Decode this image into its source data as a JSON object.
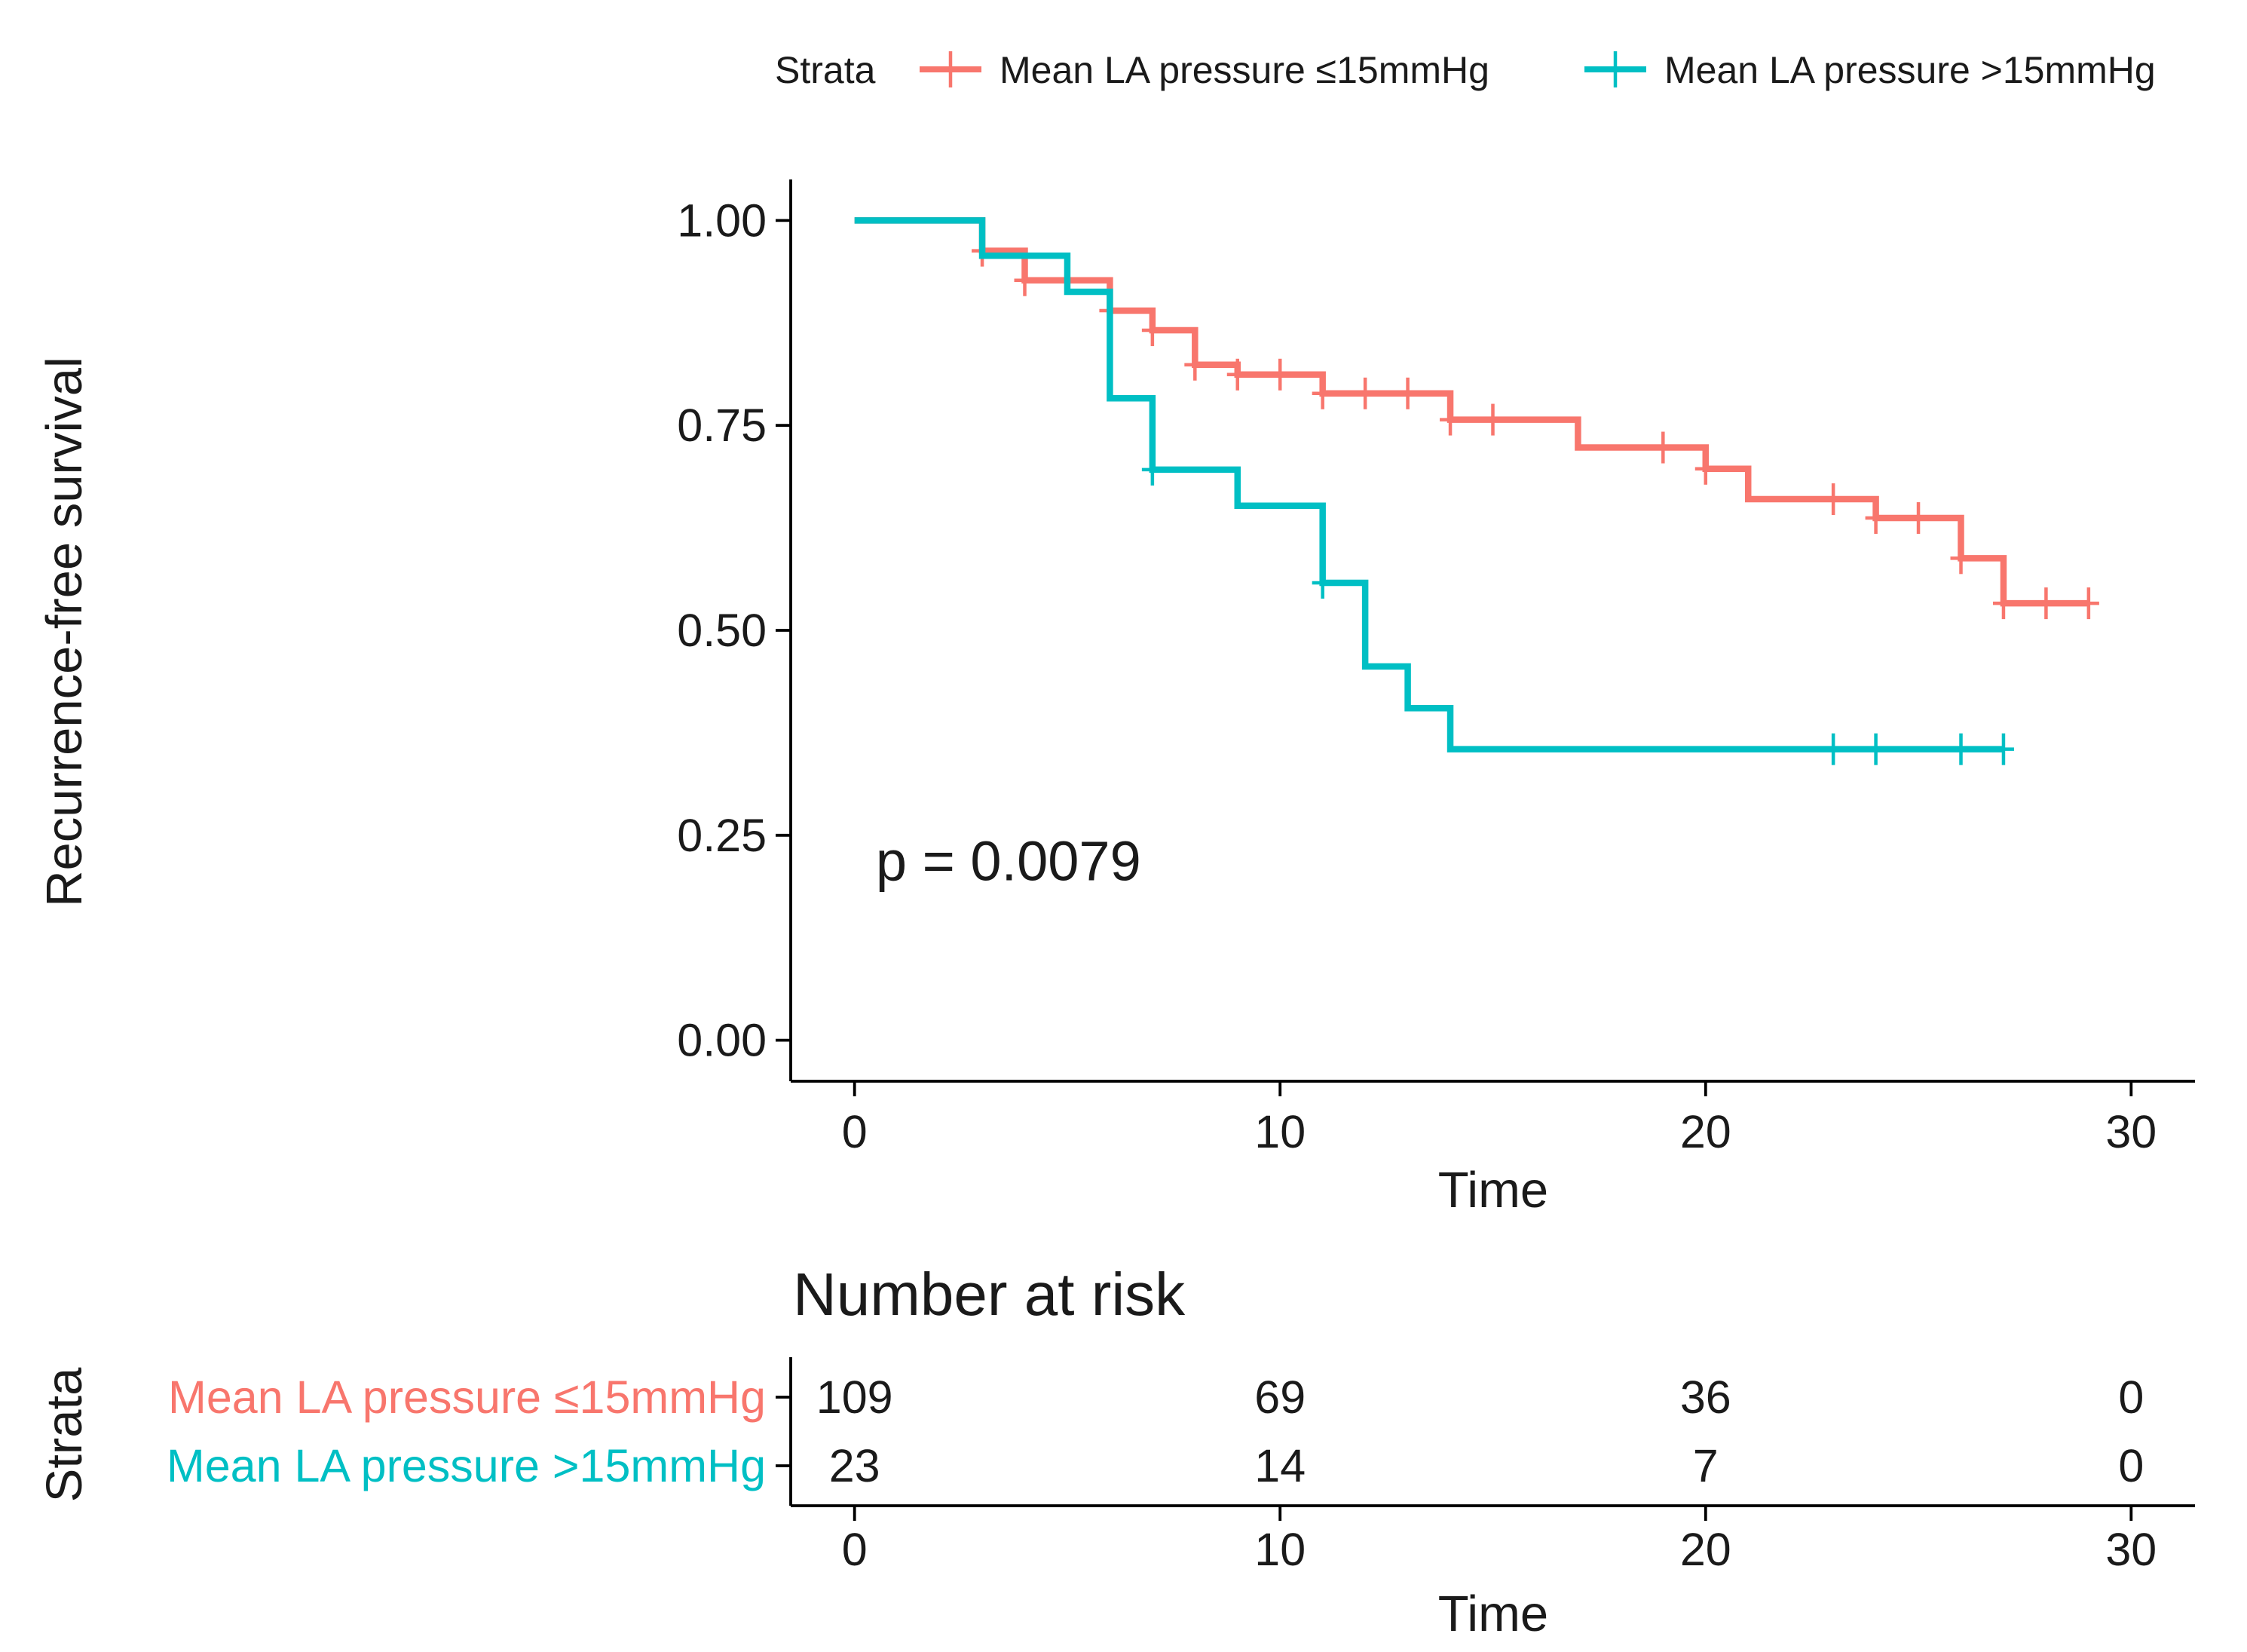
{
  "chart_data": [
    {
      "type": "line",
      "subtype": "kaplan-meier",
      "title": "",
      "xlabel": "Time",
      "ylabel": "Recurrence-free survival",
      "xlim": [
        -1.5,
        31.5
      ],
      "ylim": [
        -0.05,
        1.05
      ],
      "x_ticks": [
        0,
        10,
        20,
        30
      ],
      "x_tick_labels": [
        "0",
        "10",
        "20",
        "30"
      ],
      "y_ticks": [
        0,
        0.25,
        0.5,
        0.75,
        1.0
      ],
      "y_tick_labels": [
        "0.00",
        "0.25",
        "0.50",
        "0.75",
        "1.00"
      ],
      "grid": false,
      "legend": {
        "title": "Strata",
        "placement": "top",
        "entries": [
          "Mean LA pressure ≤15mmHg",
          "Mean LA pressure >15mmHg"
        ]
      },
      "annotation": "p = 0.0079",
      "annotation_position": [
        0.5,
        0.195
      ],
      "series": [
        {
          "name": "Mean LA pressure ≤15mmHg",
          "color": "#F8766D",
          "steps": [
            [
              0,
              1.0
            ],
            [
              3,
              0.963
            ],
            [
              4,
              0.927
            ],
            [
              6,
              0.89
            ],
            [
              7,
              0.866
            ],
            [
              8,
              0.824
            ],
            [
              9,
              0.812
            ],
            [
              11,
              0.789
            ],
            [
              14,
              0.757
            ],
            [
              17,
              0.723
            ],
            [
              20,
              0.697
            ],
            [
              21,
              0.66
            ],
            [
              24,
              0.637
            ],
            [
              26,
              0.588
            ],
            [
              27,
              0.533
            ],
            [
              29,
              0.533
            ]
          ],
          "censor_times": [
            3,
            4,
            6,
            7,
            8,
            9,
            10,
            11,
            12,
            13,
            14,
            15,
            19,
            20,
            23,
            24,
            25,
            26,
            27,
            28,
            29
          ]
        },
        {
          "name": "Mean LA pressure >15mmHg",
          "color": "#00BFC4",
          "steps": [
            [
              0,
              1.0
            ],
            [
              3,
              0.957
            ],
            [
              5,
              0.913
            ],
            [
              6,
              0.783
            ],
            [
              7,
              0.696
            ],
            [
              9,
              0.652
            ],
            [
              11,
              0.558
            ],
            [
              12,
              0.456
            ],
            [
              13,
              0.405
            ],
            [
              14,
              0.355
            ],
            [
              27,
              0.355
            ]
          ],
          "censor_times": [
            7,
            11,
            23,
            24,
            26,
            27
          ]
        }
      ]
    },
    {
      "type": "table",
      "title": "Number at risk",
      "xlabel": "Time",
      "ylabel": "Strata",
      "xlim": [
        -1.5,
        31.5
      ],
      "x_ticks": [
        0,
        10,
        20,
        30
      ],
      "x_tick_labels": [
        "0",
        "10",
        "20",
        "30"
      ],
      "columns": [
        0,
        10,
        20,
        30
      ],
      "rows": [
        {
          "label": "Mean LA pressure ≤15mmHg",
          "color": "#F8766D",
          "values": [
            "109",
            "69",
            "36",
            "0"
          ]
        },
        {
          "label": "Mean LA pressure >15mmHg",
          "color": "#00BFC4",
          "values": [
            "23",
            "14",
            "7",
            "0"
          ]
        }
      ]
    }
  ]
}
